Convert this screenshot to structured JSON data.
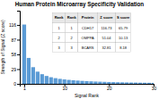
{
  "chart_data": {
    "type": "bar",
    "title": "Human Protein Microarray Specificity Validation",
    "xlabel": "Signal Rank",
    "ylabel": "Strength of Signal (Z score)",
    "x": [
      1,
      2,
      3,
      4,
      5,
      6,
      7,
      8,
      9,
      10,
      11,
      12,
      13,
      14,
      15,
      16,
      17,
      18,
      19,
      20,
      21,
      22,
      23,
      24,
      25,
      26,
      27,
      28,
      29,
      30
    ],
    "values": [
      116.73,
      51.04,
      32.81,
      24.0,
      19.0,
      15.5,
      13.0,
      11.2,
      9.8,
      8.7,
      7.8,
      7.0,
      6.4,
      5.8,
      5.3,
      4.9,
      4.5,
      4.2,
      3.9,
      3.6,
      3.4,
      3.2,
      3.0,
      2.8,
      2.6,
      2.5,
      2.3,
      2.2,
      2.1,
      2.0
    ],
    "color": "#5b9bd5",
    "xlim": [
      0,
      30
    ],
    "xticks": [
      1,
      10,
      20,
      30
    ],
    "ylim": [
      0,
      144
    ],
    "yticks": [
      0,
      29,
      58,
      87,
      116
    ],
    "table": {
      "columns": [
        "Rank",
        "Protein",
        "Z score",
        "S score"
      ],
      "rows": [
        [
          "1",
          "CDH17",
          "116.73",
          "65.79"
        ],
        [
          "2",
          "OMPPA",
          "51.04",
          "10.13"
        ],
        [
          "3",
          "BCARS",
          "32.81",
          "8.18"
        ]
      ],
      "rank_header": "Rank",
      "ranks": [
        "1",
        "2",
        "3"
      ]
    }
  }
}
